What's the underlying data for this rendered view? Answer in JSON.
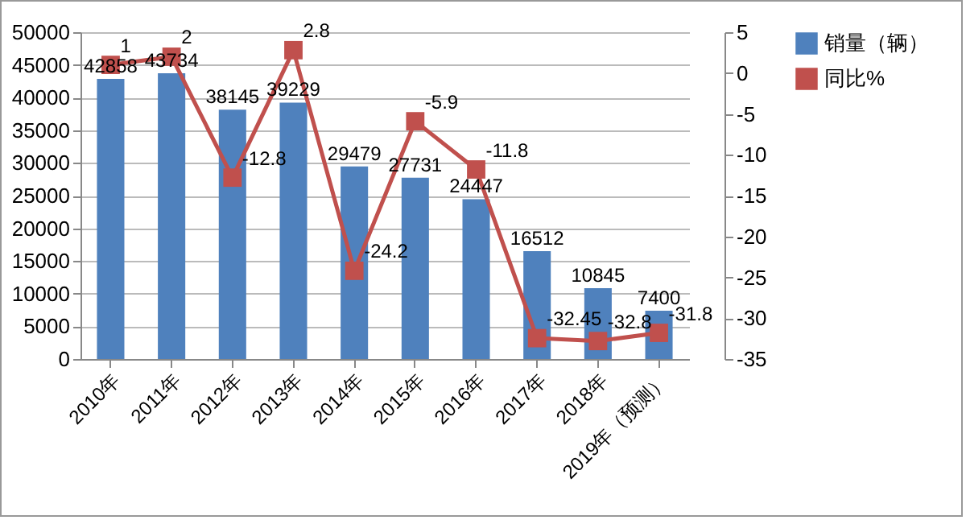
{
  "chart_data": {
    "type": "bar",
    "categories": [
      "2010年",
      "2011年",
      "2012年",
      "2013年",
      "2014年",
      "2015年",
      "2016年",
      "2017年",
      "2018年",
      "2019年（预测）"
    ],
    "series": [
      {
        "name": "销量（辆）",
        "color": "#4f81bd",
        "values": [
          42858,
          43734,
          38145,
          39229,
          29479,
          27731,
          24447,
          16512,
          10845,
          7400
        ]
      },
      {
        "name": "同比%",
        "type": "line",
        "axis": "y2",
        "color": "#c0504d",
        "marker": "square",
        "values": [
          1,
          2,
          -12.8,
          2.8,
          -24.2,
          -5.9,
          -11.8,
          -32.45,
          -32.8,
          -31.8
        ]
      }
    ],
    "ylim": [
      0,
      50000
    ],
    "yticks": [
      0,
      5000,
      10000,
      15000,
      20000,
      25000,
      30000,
      35000,
      40000,
      45000,
      50000
    ],
    "y2lim": [
      -35,
      5
    ],
    "y2ticks": [
      -35,
      -30,
      -25,
      -20,
      -15,
      -10,
      -5,
      0,
      5
    ],
    "grid": "y",
    "legend": "right",
    "data_labels": true
  }
}
